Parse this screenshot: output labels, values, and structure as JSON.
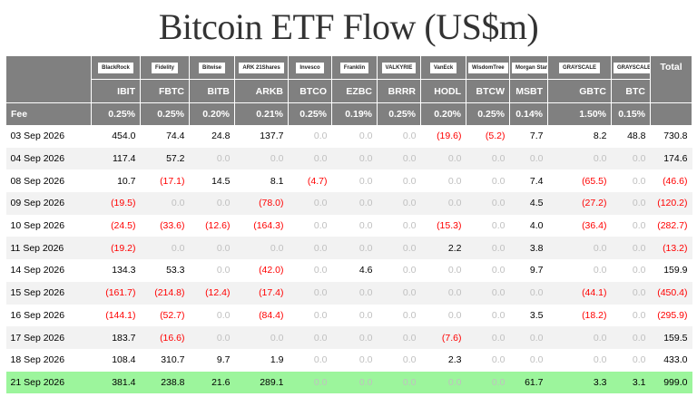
{
  "title": "Bitcoin ETF Flow (US$m)",
  "chart_data": {
    "type": "table",
    "title": "Bitcoin ETF Flow (US$m)",
    "columns": [
      "IBIT",
      "FBTC",
      "BITB",
      "ARKB",
      "BTCO",
      "EZBC",
      "BRRR",
      "HODL",
      "BTCW",
      "MSBT",
      "GBTC",
      "BTC"
    ],
    "total_label": "Total",
    "issuers": [
      "BlackRock",
      "Fidelity",
      "Bitwise",
      "ARK 21Shares",
      "Invesco",
      "Franklin",
      "VALKYRIE",
      "VanEck",
      "WisdomTree",
      "Morgan Stanley",
      "GRAYSCALE",
      "GRAYSCALE"
    ],
    "fee_label": "Fee",
    "fees": [
      "0.25%",
      "0.25%",
      "0.20%",
      "0.21%",
      "0.25%",
      "0.19%",
      "0.25%",
      "0.20%",
      "0.25%",
      "0.14%",
      "1.50%",
      "0.15%"
    ],
    "rows": [
      {
        "date": "03 Sep 2026",
        "values": [
          "454.0",
          "74.4",
          "24.8",
          "137.7",
          "0.0",
          "0.0",
          "0.0",
          "(19.6)",
          "(5.2)",
          "7.7",
          "8.2",
          "48.8"
        ],
        "total": "730.8"
      },
      {
        "date": "04 Sep 2026",
        "values": [
          "117.4",
          "57.2",
          "0.0",
          "0.0",
          "0.0",
          "0.0",
          "0.0",
          "0.0",
          "0.0",
          "0.0",
          "0.0",
          "0.0"
        ],
        "total": "174.6"
      },
      {
        "date": "08 Sep 2026",
        "values": [
          "10.7",
          "(17.1)",
          "14.5",
          "8.1",
          "(4.7)",
          "0.0",
          "0.0",
          "0.0",
          "0.0",
          "7.4",
          "(65.5)",
          "0.0"
        ],
        "total": "(46.6)"
      },
      {
        "date": "09 Sep 2026",
        "values": [
          "(19.5)",
          "0.0",
          "0.0",
          "(78.0)",
          "0.0",
          "0.0",
          "0.0",
          "0.0",
          "0.0",
          "4.5",
          "(27.2)",
          "0.0"
        ],
        "total": "(120.2)"
      },
      {
        "date": "10 Sep 2026",
        "values": [
          "(24.5)",
          "(33.6)",
          "(12.6)",
          "(164.3)",
          "0.0",
          "0.0",
          "0.0",
          "(15.3)",
          "0.0",
          "4.0",
          "(36.4)",
          "0.0"
        ],
        "total": "(282.7)"
      },
      {
        "date": "11 Sep 2026",
        "values": [
          "(19.2)",
          "0.0",
          "0.0",
          "0.0",
          "0.0",
          "0.0",
          "0.0",
          "2.2",
          "0.0",
          "3.8",
          "0.0",
          "0.0"
        ],
        "total": "(13.2)"
      },
      {
        "date": "14 Sep 2026",
        "values": [
          "134.3",
          "53.3",
          "0.0",
          "(42.0)",
          "0.0",
          "4.6",
          "0.0",
          "0.0",
          "0.0",
          "9.7",
          "0.0",
          "0.0"
        ],
        "total": "159.9"
      },
      {
        "date": "15 Sep 2026",
        "values": [
          "(161.7)",
          "(214.8)",
          "(12.4)",
          "(17.4)",
          "0.0",
          "0.0",
          "0.0",
          "0.0",
          "0.0",
          "0.0",
          "(44.1)",
          "0.0"
        ],
        "total": "(450.4)"
      },
      {
        "date": "16 Sep 2026",
        "values": [
          "(144.1)",
          "(52.7)",
          "0.0",
          "(84.4)",
          "0.0",
          "0.0",
          "0.0",
          "0.0",
          "0.0",
          "3.5",
          "(18.2)",
          "0.0"
        ],
        "total": "(295.9)"
      },
      {
        "date": "17 Sep 2026",
        "values": [
          "183.7",
          "(16.6)",
          "0.0",
          "0.0",
          "0.0",
          "0.0",
          "0.0",
          "(7.6)",
          "0.0",
          "0.0",
          "0.0",
          "0.0"
        ],
        "total": "159.5"
      },
      {
        "date": "18 Sep 2026",
        "values": [
          "108.4",
          "310.7",
          "9.7",
          "1.9",
          "0.0",
          "0.0",
          "0.0",
          "2.3",
          "0.0",
          "0.0",
          "0.0",
          "0.0"
        ],
        "total": "433.0"
      },
      {
        "date": "21 Sep 2026",
        "values": [
          "381.4",
          "238.8",
          "21.6",
          "289.1",
          "0.0",
          "0.0",
          "0.0",
          "0.0",
          "0.0",
          "61.7",
          "3.3",
          "3.1"
        ],
        "total": "999.0"
      }
    ],
    "colors": {
      "header": "#808080",
      "negative": "#ff0000",
      "zero": "#c0c0c0",
      "highlight": "#9cf59c",
      "stripe": "#f2f2f2"
    }
  }
}
